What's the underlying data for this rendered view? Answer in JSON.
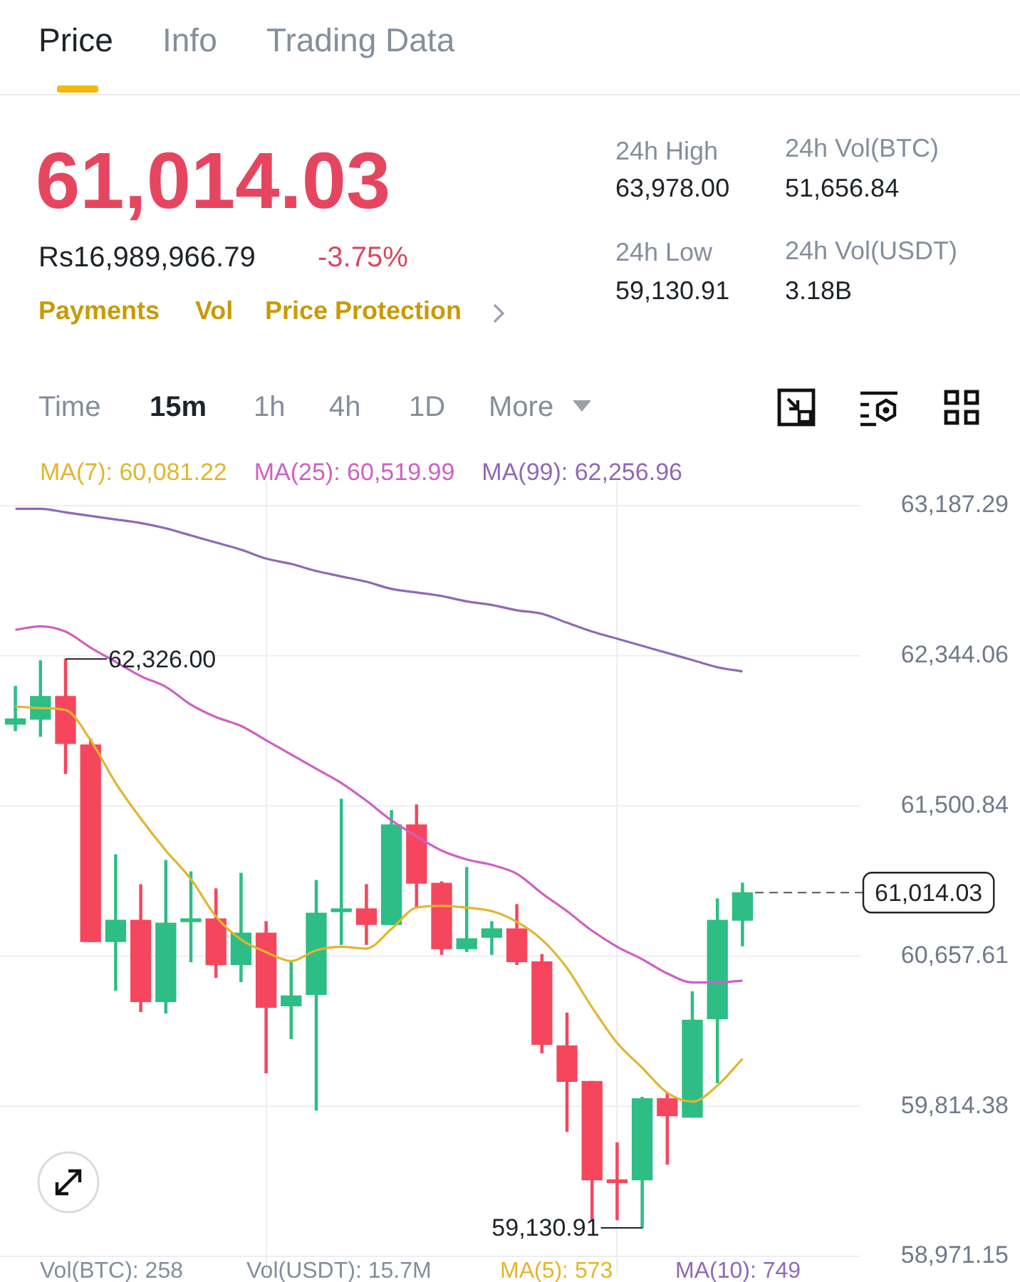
{
  "chart_data": {
    "type": "candlestick",
    "categories": [
      null,
      null,
      null,
      null,
      null,
      null,
      null,
      null,
      null,
      null,
      null,
      null,
      null,
      null,
      null,
      null,
      null,
      null,
      null,
      null,
      null,
      null,
      null,
      null,
      null,
      null,
      null,
      null,
      null,
      null
    ],
    "ohlc": [
      [
        61960,
        62172,
        61924,
        61990
      ],
      [
        61988,
        62316,
        61892,
        62116
      ],
      [
        62116,
        62326,
        61683,
        61852
      ],
      [
        61844,
        61876,
        60739,
        60739
      ],
      [
        60739,
        61227,
        60466,
        60859
      ],
      [
        60859,
        61059,
        60346,
        60402
      ],
      [
        60402,
        61195,
        60338,
        60843
      ],
      [
        60851,
        61131,
        60626,
        60867
      ],
      [
        60867,
        61035,
        60538,
        60610
      ],
      [
        60610,
        61123,
        60514,
        60787
      ],
      [
        60787,
        60851,
        60002,
        60370
      ],
      [
        60378,
        60626,
        60194,
        60434
      ],
      [
        60442,
        61083,
        59793,
        60899
      ],
      [
        60907,
        61539,
        60723,
        60923
      ],
      [
        60923,
        61059,
        60723,
        60835
      ],
      [
        60835,
        61475,
        60835,
        61395
      ],
      [
        61395,
        61507,
        60931,
        61067
      ],
      [
        61067,
        61075,
        60667,
        60699
      ],
      [
        60699,
        61155,
        60683,
        60755
      ],
      [
        60763,
        60851,
        60667,
        60811
      ],
      [
        60811,
        60947,
        60610,
        60626
      ],
      [
        60626,
        60667,
        60114,
        60162
      ],
      [
        60154,
        60338,
        59673,
        59954
      ],
      [
        59954,
        59954,
        59169,
        59401
      ],
      [
        59401,
        59609,
        59177,
        59385
      ],
      [
        59401,
        59865,
        59130.91,
        59857
      ],
      [
        59857,
        59890,
        59489,
        59761
      ],
      [
        59753,
        60458,
        59753,
        60298
      ],
      [
        60306,
        60979,
        59946,
        60859
      ],
      [
        60859,
        61067,
        60715,
        61014.03
      ]
    ],
    "colors": [
      "#2ebd85",
      "#2ebd85",
      "#f6465d",
      "#f6465d",
      "#2ebd85",
      "#f6465d",
      "#2ebd85",
      "#2ebd85",
      "#f6465d",
      "#2ebd85",
      "#f6465d",
      "#2ebd85",
      "#2ebd85",
      "#2ebd85",
      "#f6465d",
      "#2ebd85",
      "#f6465d",
      "#f6465d",
      "#2ebd85",
      "#2ebd85",
      "#f6465d",
      "#f6465d",
      "#f6465d",
      "#f6465d",
      "#f6465d",
      "#2ebd85",
      "#f6465d",
      "#2ebd85",
      "#2ebd85",
      "#2ebd85"
    ],
    "series": [
      {
        "name": "MA(7): 60,081.22",
        "type": "line",
        "color": "#e3b52c",
        "values": [
          62060,
          62050,
          62040,
          61870,
          61630,
          61430,
          61250,
          61090,
          60880,
          60750,
          60680,
          60630,
          60690,
          60710,
          60700,
          60810,
          60930,
          60940,
          60930,
          60910,
          60850,
          60750,
          60590,
          60370,
          60170,
          60030,
          59890,
          59840,
          59930,
          60081.22
        ]
      },
      {
        "name": "MA(25): 60,519.99",
        "type": "line",
        "color": "#cf5fc6",
        "values": [
          62490,
          62510,
          62480,
          62390,
          62310,
          62230,
          62170,
          62070,
          62000,
          61950,
          61870,
          61790,
          61710,
          61630,
          61530,
          61420,
          61330,
          61250,
          61200,
          61170,
          61120,
          61010,
          60910,
          60800,
          60710,
          60640,
          60560,
          60510,
          60510,
          60519.99
        ]
      },
      {
        "name": "MA(99): 62,256.96",
        "type": "line",
        "color": "#9068b8",
        "values": [
          63170,
          63170,
          63150,
          63130,
          63110,
          63090,
          63060,
          63020,
          62980,
          62940,
          62890,
          62860,
          62820,
          62790,
          62760,
          62720,
          62700,
          62680,
          62650,
          62630,
          62600,
          62580,
          62530,
          62480,
          62440,
          62400,
          62360,
          62320,
          62280,
          62256.96
        ]
      }
    ],
    "ylim": [
      58971.15,
      63187.29
    ],
    "yticks": [
      {
        "value": 58971.15,
        "label": "58,971.15"
      },
      {
        "value": 59814.38,
        "label": "59,814.38"
      },
      {
        "value": 60657.61,
        "label": "60,657.61"
      },
      {
        "value": 61500.84,
        "label": "61,500.84"
      },
      {
        "value": 62344.06,
        "label": "62,344.06"
      },
      {
        "value": 63187.29,
        "label": "63,187.29"
      }
    ],
    "tick_labels": "y",
    "grid": "y",
    "legend": "top",
    "ref_lines": [
      {
        "axis": "y",
        "value": 61014.03,
        "label": "61,014.03",
        "line_style": "dashed",
        "color": "#555555"
      }
    ],
    "annotations": [
      "62,326.00",
      "59,130.91",
      "Price",
      "Info",
      "Trading Data",
      "61,014.03",
      "Rs16,989,966.79",
      "-3.75%",
      "Payments",
      "Vol",
      "Price Protection",
      "24h High",
      "63,978.00",
      "24h Low",
      "59,130.91",
      "24h Vol(BTC)",
      "51,656.84",
      "24h Vol(USDT)",
      "3.18B",
      "Time",
      "15m",
      "1h",
      "4h",
      "1D",
      "More",
      "Vol(BTC): 258",
      "Vol(USDT): 15.7M",
      "MA(5): 573",
      "MA(10): 749"
    ]
  }
}
